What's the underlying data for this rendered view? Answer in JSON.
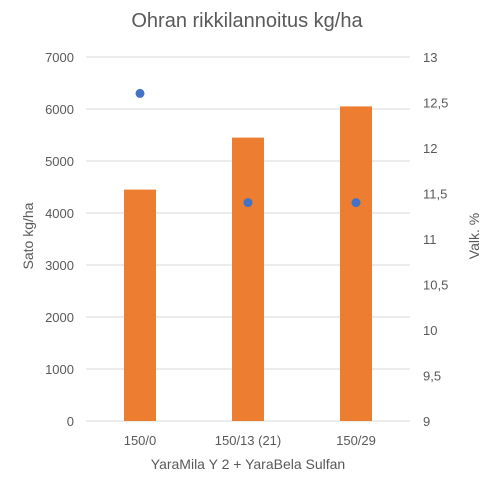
{
  "chart_data": {
    "type": "bar",
    "title": "Ohran rikkilannoitus kg/ha",
    "xlabel": "YaraMila Y 2 +  YaraBela Sulfan",
    "ylabel": "Sato kg/ha",
    "y2label": "Valk. %",
    "categories": [
      "150/0",
      "150/13 (21)",
      "150/29"
    ],
    "series": [
      {
        "name": "Sato kg/ha",
        "type": "bar",
        "axis": "left",
        "values": [
          4450,
          5450,
          6050
        ],
        "color": "#ED7D31"
      },
      {
        "name": "Valk. %",
        "type": "scatter",
        "axis": "right",
        "values": [
          12.6,
          11.4,
          11.4
        ],
        "color": "#4472C4"
      }
    ],
    "ylim": [
      0,
      7000
    ],
    "y2lim": [
      9,
      13
    ],
    "yticks": [
      "0",
      "1000",
      "2000",
      "3000",
      "4000",
      "5000",
      "6000",
      "7000"
    ],
    "y2ticks": [
      "9",
      "9,5",
      "10",
      "10,5",
      "11",
      "11,5",
      "12",
      "12,5",
      "13"
    ],
    "grid": true,
    "gridColor": "#D9D9D9",
    "textColor": "#595959"
  }
}
